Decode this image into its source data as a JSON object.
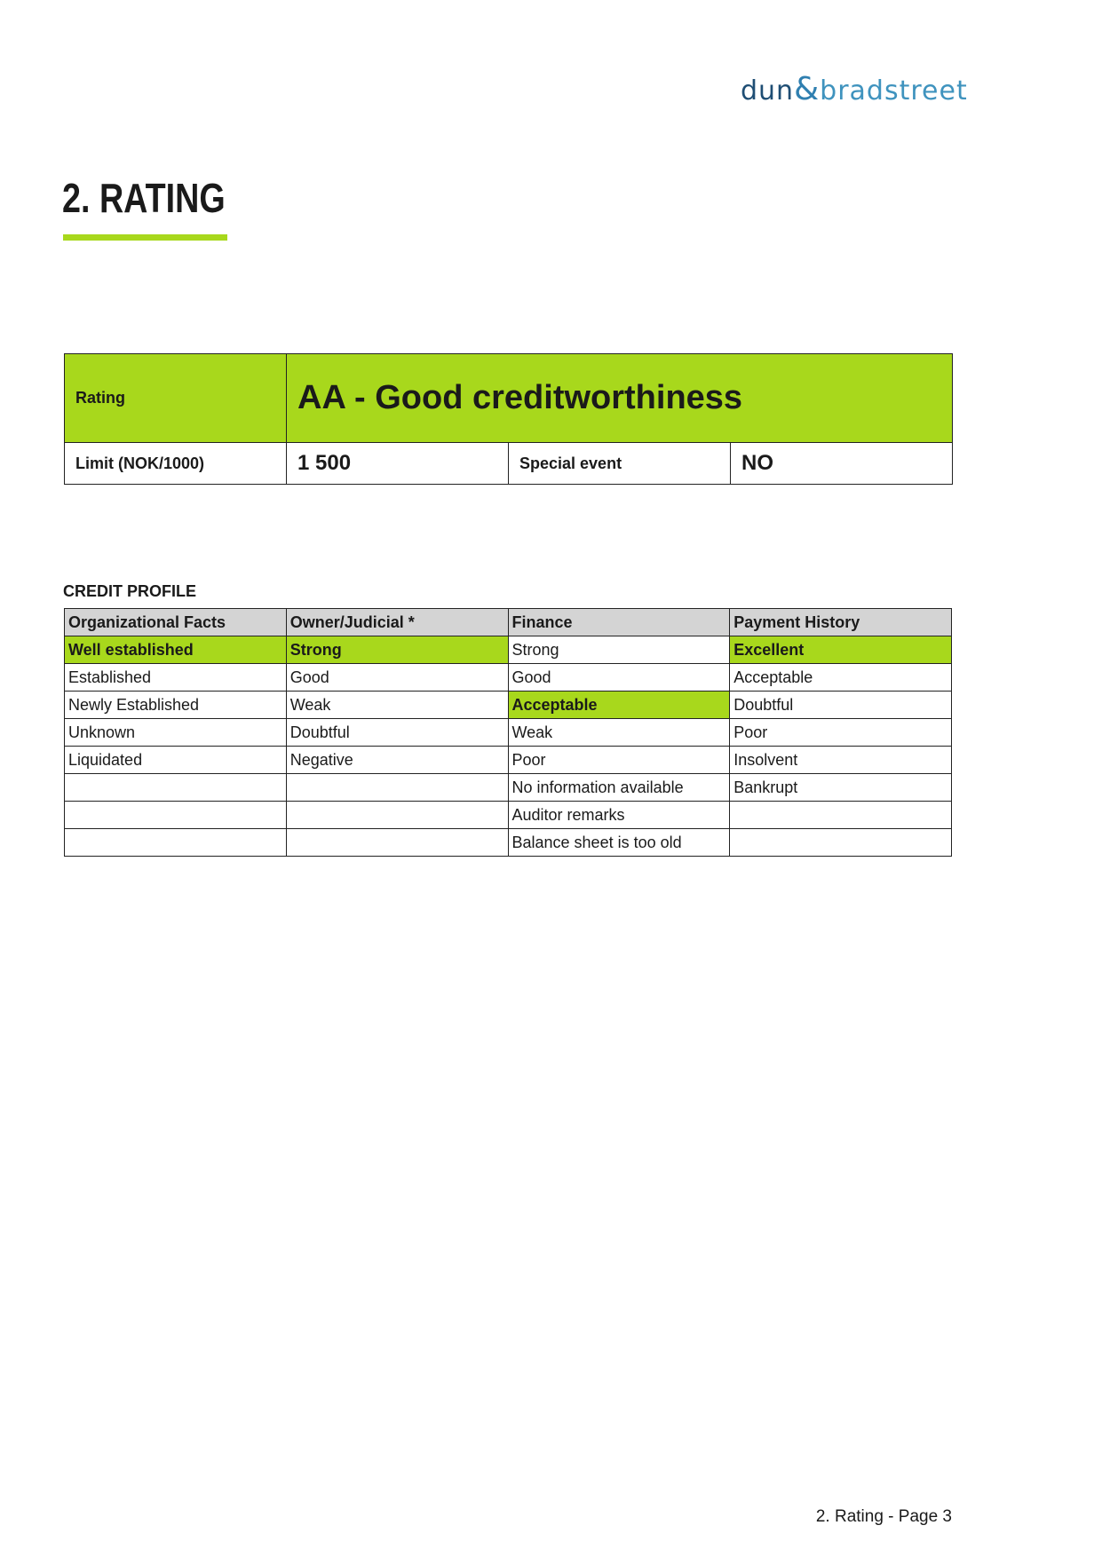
{
  "logo": {
    "part1": "dun",
    "amp": "&",
    "part2": "bradstreet"
  },
  "title": "2. RATING",
  "rating_table": {
    "rating_label": "Rating",
    "rating_value": "AA - Good creditworthiness",
    "limit_label": "Limit (NOK/1000)",
    "limit_value": "1 500",
    "special_event_label": "Special event",
    "special_event_value": "NO"
  },
  "credit_profile": {
    "title": "CREDIT PROFILE",
    "headers": [
      "Organizational Facts",
      "Owner/Judicial *",
      "Finance",
      "Payment History"
    ],
    "rows": [
      [
        "Well established",
        "Strong",
        "Strong",
        "Excellent"
      ],
      [
        "Established",
        "Good",
        "Good",
        "Acceptable"
      ],
      [
        "Newly Established",
        "Weak",
        "Acceptable",
        "Doubtful"
      ],
      [
        "Unknown",
        "Doubtful",
        "Weak",
        "Poor"
      ],
      [
        "Liquidated",
        "Negative",
        "Poor",
        "Insolvent"
      ],
      [
        "",
        "",
        "No information available",
        "Bankrupt"
      ],
      [
        "",
        "",
        "Auditor remarks",
        ""
      ],
      [
        "",
        "",
        "Balance sheet is too old",
        ""
      ]
    ],
    "highlighted": {
      "Organizational Facts": "Well established",
      "Owner/Judicial *": "Strong",
      "Finance": "Acceptable",
      "Payment History": "Excellent"
    },
    "highlight_color": "#a8d81c"
  },
  "footer": "2. Rating - Page 3"
}
